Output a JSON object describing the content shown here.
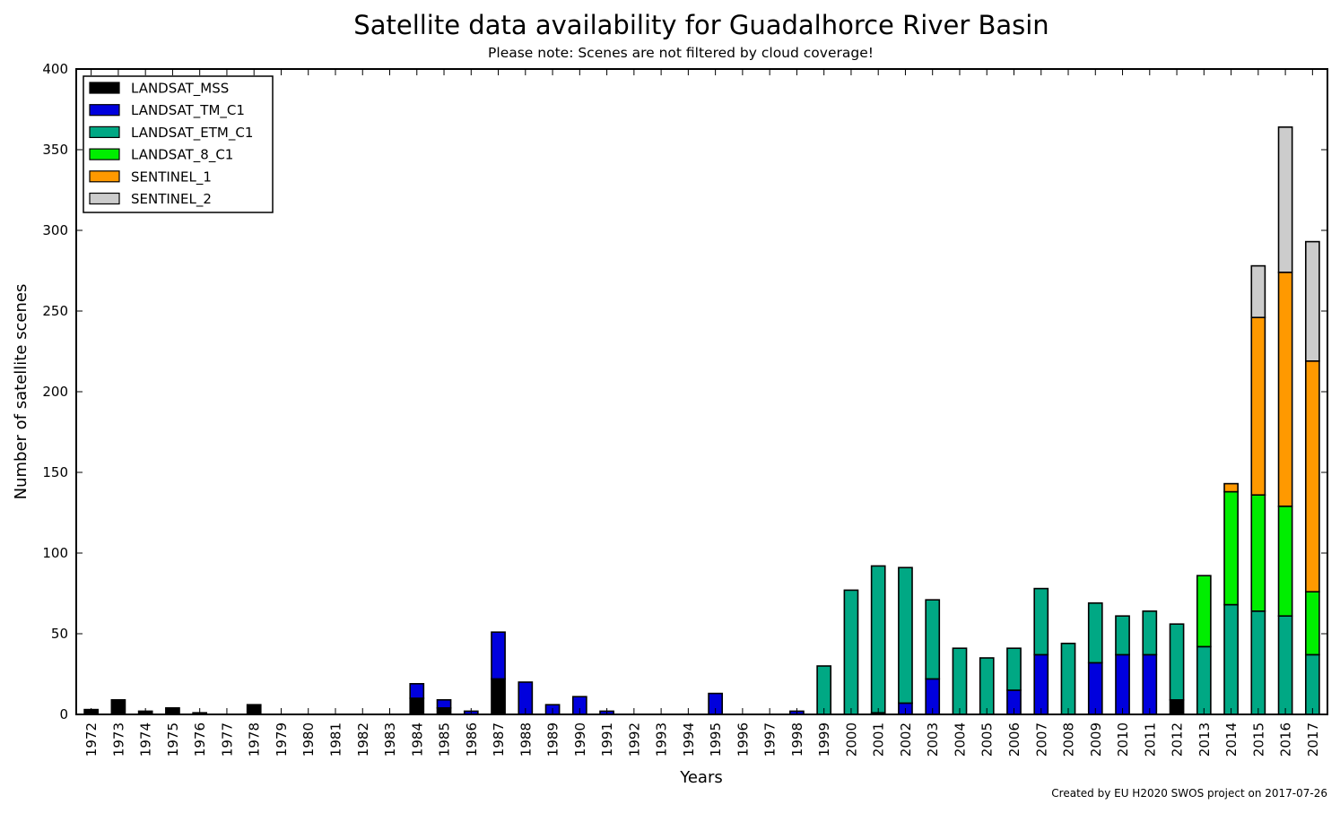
{
  "chart_data": {
    "type": "bar",
    "stacked": true,
    "title": "Satellite data availability for Guadalhorce River Basin",
    "subtitle": "Please note: Scenes are not filtered by cloud coverage!",
    "xlabel": "Years",
    "ylabel": "Number of satellite scenes",
    "credit": "Created by EU H2020 SWOS project on 2017-07-26",
    "ylim": [
      0,
      400
    ],
    "yticks": [
      "0",
      "50",
      "100",
      "150",
      "200",
      "250",
      "300",
      "350",
      "400"
    ],
    "legend_position": "top-left",
    "grid": false,
    "categories": [
      "1972",
      "1973",
      "1974",
      "1975",
      "1976",
      "1977",
      "1978",
      "1979",
      "1980",
      "1981",
      "1982",
      "1983",
      "1984",
      "1985",
      "1986",
      "1987",
      "1988",
      "1989",
      "1990",
      "1991",
      "1992",
      "1993",
      "1994",
      "1995",
      "1996",
      "1997",
      "1998",
      "1999",
      "2000",
      "2001",
      "2002",
      "2003",
      "2004",
      "2005",
      "2006",
      "2007",
      "2008",
      "2009",
      "2010",
      "2011",
      "2012",
      "2013",
      "2014",
      "2015",
      "2016",
      "2017"
    ],
    "series": [
      {
        "name": "LANDSAT_MSS",
        "color": "#000000",
        "values": [
          3,
          9,
          2,
          4,
          1,
          0,
          6,
          0,
          0,
          0,
          0,
          0,
          10,
          4,
          0,
          22,
          0,
          0,
          0,
          0,
          0,
          0,
          0,
          0,
          0,
          0,
          0,
          0,
          0,
          1,
          0,
          0,
          0,
          0,
          0,
          0,
          0,
          0,
          0,
          0,
          9,
          0,
          0,
          0,
          0,
          0
        ]
      },
      {
        "name": "LANDSAT_TM_C1",
        "color": "#0000dd",
        "values": [
          0,
          0,
          0,
          0,
          0,
          0,
          0,
          0,
          0,
          0,
          0,
          0,
          9,
          5,
          2,
          29,
          20,
          6,
          11,
          2,
          0,
          0,
          0,
          13,
          0,
          0,
          2,
          0,
          0,
          0,
          7,
          22,
          0,
          0,
          15,
          37,
          0,
          32,
          37,
          37,
          0,
          0,
          0,
          0,
          0,
          0
        ]
      },
      {
        "name": "LANDSAT_ETM_C1",
        "color": "#00a884",
        "values": [
          0,
          0,
          0,
          0,
          0,
          0,
          0,
          0,
          0,
          0,
          0,
          0,
          0,
          0,
          0,
          0,
          0,
          0,
          0,
          0,
          0,
          0,
          0,
          0,
          0,
          0,
          0,
          30,
          77,
          91,
          84,
          49,
          41,
          35,
          26,
          41,
          44,
          37,
          24,
          27,
          47,
          42,
          68,
          64,
          61,
          37
        ]
      },
      {
        "name": "LANDSAT_8_C1",
        "color": "#00ee00",
        "values": [
          0,
          0,
          0,
          0,
          0,
          0,
          0,
          0,
          0,
          0,
          0,
          0,
          0,
          0,
          0,
          0,
          0,
          0,
          0,
          0,
          0,
          0,
          0,
          0,
          0,
          0,
          0,
          0,
          0,
          0,
          0,
          0,
          0,
          0,
          0,
          0,
          0,
          0,
          0,
          0,
          0,
          44,
          70,
          72,
          68,
          39
        ]
      },
      {
        "name": "SENTINEL_1",
        "color": "#ff9900",
        "values": [
          0,
          0,
          0,
          0,
          0,
          0,
          0,
          0,
          0,
          0,
          0,
          0,
          0,
          0,
          0,
          0,
          0,
          0,
          0,
          0,
          0,
          0,
          0,
          0,
          0,
          0,
          0,
          0,
          0,
          0,
          0,
          0,
          0,
          0,
          0,
          0,
          0,
          0,
          0,
          0,
          0,
          0,
          5,
          110,
          145,
          143
        ]
      },
      {
        "name": "SENTINEL_2",
        "color": "#cccccc",
        "values": [
          0,
          0,
          0,
          0,
          0,
          0,
          0,
          0,
          0,
          0,
          0,
          0,
          0,
          0,
          0,
          0,
          0,
          0,
          0,
          0,
          0,
          0,
          0,
          0,
          0,
          0,
          0,
          0,
          0,
          0,
          0,
          0,
          0,
          0,
          0,
          0,
          0,
          0,
          0,
          0,
          0,
          0,
          0,
          32,
          90,
          74
        ]
      }
    ]
  }
}
